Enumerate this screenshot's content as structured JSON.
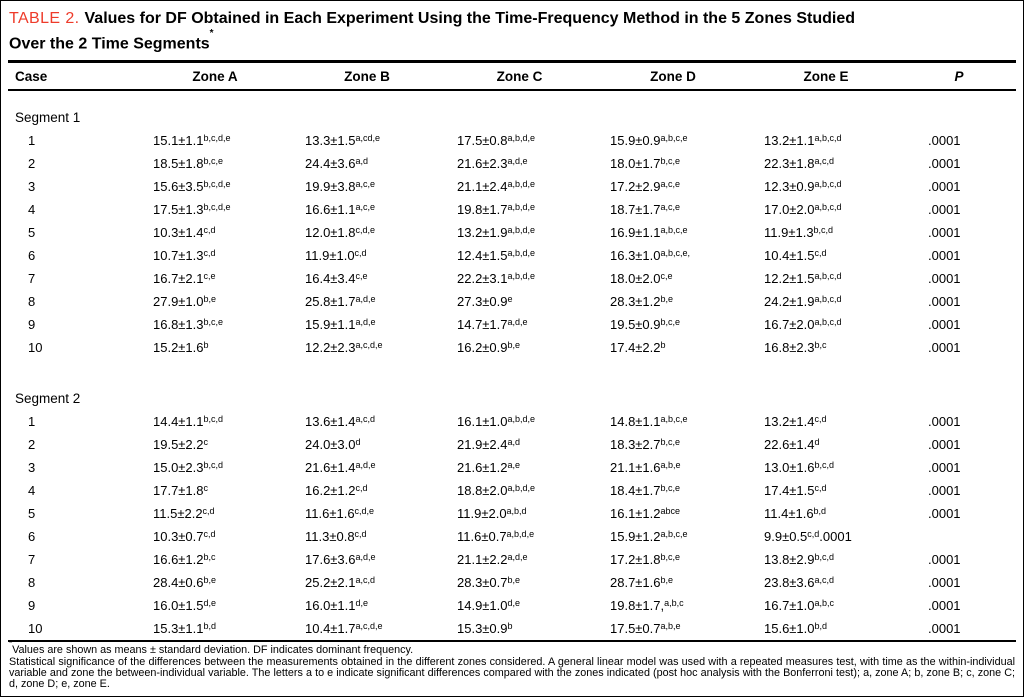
{
  "title": {
    "label": "TABLE 2.",
    "line1": "Values for DF Obtained in Each Experiment Using the Time-Frequency Method in the 5 Zones Studied",
    "line2": "Over the 2 Time Segments",
    "mark": "*"
  },
  "accent_color": "#ee3b2a",
  "columns": [
    "Case",
    "Zone A",
    "Zone B",
    "Zone C",
    "Zone D",
    "Zone E",
    "P"
  ],
  "sections": [
    {
      "name": "Segment 1",
      "rows": [
        {
          "case": "1",
          "cells": [
            {
              "v": "15.1±1.1",
              "s": "b,c,d,e"
            },
            {
              "v": "13.3±1.5",
              "s": "a,cd,e"
            },
            {
              "v": "17.5±0.8",
              "s": "a,b,d,e"
            },
            {
              "v": "15.9±0.9",
              "s": "a,b,c,e"
            },
            {
              "v": "13.2±1.1",
              "s": "a,b,c,d"
            }
          ],
          "p": ".0001"
        },
        {
          "case": "2",
          "cells": [
            {
              "v": "18.5±1.8",
              "s": "b,c,e"
            },
            {
              "v": "24.4±3.6",
              "s": "a,d"
            },
            {
              "v": "21.6±2.3",
              "s": "a,d,e"
            },
            {
              "v": "18.0±1.7",
              "s": "b,c,e"
            },
            {
              "v": "22.3±1.8",
              "s": "a,c,d"
            }
          ],
          "p": ".0001"
        },
        {
          "case": "3",
          "cells": [
            {
              "v": "15.6±3.5",
              "s": "b,c,d,e"
            },
            {
              "v": "19.9±3.8",
              "s": "a,c,e"
            },
            {
              "v": "21.1±2.4",
              "s": "a,b,d,e"
            },
            {
              "v": "17.2±2.9",
              "s": "a,c,e"
            },
            {
              "v": "12.3±0.9",
              "s": "a,b,c,d"
            }
          ],
          "p": ".0001"
        },
        {
          "case": "4",
          "cells": [
            {
              "v": "17.5±1.3",
              "s": "b,c,d,e"
            },
            {
              "v": "16.6±1.1",
              "s": "a,c,e"
            },
            {
              "v": "19.8±1.7",
              "s": "a,b,d,e"
            },
            {
              "v": "18.7±1.7",
              "s": "a,c,e"
            },
            {
              "v": "17.0±2.0",
              "s": "a,b,c,d"
            }
          ],
          "p": ".0001"
        },
        {
          "case": "5",
          "cells": [
            {
              "v": "10.3±1.4",
              "s": "c,d"
            },
            {
              "v": "12.0±1.8",
              "s": "c,d,e"
            },
            {
              "v": "13.2±1.9",
              "s": "a,b,d,e"
            },
            {
              "v": "16.9±1.1",
              "s": "a,b,c,e"
            },
            {
              "v": "11.9±1.3",
              "s": "b,c,d"
            }
          ],
          "p": ".0001"
        },
        {
          "case": "6",
          "cells": [
            {
              "v": "10.7±1.3",
              "s": "c,d"
            },
            {
              "v": "11.9±1.0",
              "s": "c,d"
            },
            {
              "v": "12.4±1.5",
              "s": "a,b,d,e"
            },
            {
              "v": "16.3±1.0",
              "s": "a,b,c,e,"
            },
            {
              "v": "10.4±1.5",
              "s": "c,d"
            }
          ],
          "p": ".0001"
        },
        {
          "case": "7",
          "cells": [
            {
              "v": "16.7±2.1",
              "s": "c,e"
            },
            {
              "v": "16.4±3.4",
              "s": "c,e"
            },
            {
              "v": "22.2±3.1",
              "s": "a,b,d,e"
            },
            {
              "v": "18.0±2.0",
              "s": "c,e"
            },
            {
              "v": "12.2±1.5",
              "s": "a,b,c,d"
            }
          ],
          "p": ".0001"
        },
        {
          "case": "8",
          "cells": [
            {
              "v": "27.9±1.0",
              "s": "b,e"
            },
            {
              "v": "25.8±1.7",
              "s": "a,d,e"
            },
            {
              "v": "27.3±0.9",
              "s": "e"
            },
            {
              "v": "28.3±1.2",
              "s": "b,e"
            },
            {
              "v": "24.2±1.9",
              "s": "a,b,c,d"
            }
          ],
          "p": ".0001"
        },
        {
          "case": "9",
          "cells": [
            {
              "v": "16.8±1.3",
              "s": "b,c,e"
            },
            {
              "v": "15.9±1.1",
              "s": "a,d,e"
            },
            {
              "v": "14.7±1.7",
              "s": "a,d,e"
            },
            {
              "v": "19.5±0.9",
              "s": "b,c,e"
            },
            {
              "v": "16.7±2.0",
              "s": "a,b,c,d"
            }
          ],
          "p": ".0001"
        },
        {
          "case": "10",
          "cells": [
            {
              "v": "15.2±1.6",
              "s": "b"
            },
            {
              "v": "12.2±2.3",
              "s": "a,c,d,e"
            },
            {
              "v": "16.2±0.9",
              "s": "b,e"
            },
            {
              "v": "17.4±2.2",
              "s": "b"
            },
            {
              "v": "16.8±2.3",
              "s": "b,c"
            }
          ],
          "p": ".0001"
        }
      ]
    },
    {
      "name": "Segment 2",
      "rows": [
        {
          "case": "1",
          "cells": [
            {
              "v": "14.4±1.1",
              "s": "b,c,d"
            },
            {
              "v": "13.6±1.4",
              "s": "a,c,d"
            },
            {
              "v": "16.1±1.0",
              "s": "a,b,d,e"
            },
            {
              "v": "14.8±1.1",
              "s": "a,b,c,e"
            },
            {
              "v": "13.2±1.4",
              "s": "c,d"
            }
          ],
          "p": ".0001"
        },
        {
          "case": "2",
          "cells": [
            {
              "v": "19.5±2.2",
              "s": "c"
            },
            {
              "v": "24.0±3.0",
              "s": "d"
            },
            {
              "v": "21.9±2.4",
              "s": "a,d"
            },
            {
              "v": "18.3±2.7",
              "s": "b,c,e"
            },
            {
              "v": "22.6±1.4",
              "s": "d"
            }
          ],
          "p": ".0001"
        },
        {
          "case": "3",
          "cells": [
            {
              "v": "15.0±2.3",
              "s": "b,c,d"
            },
            {
              "v": "21.6±1.4",
              "s": "a,d,e"
            },
            {
              "v": "21.6±1.2",
              "s": "a,e"
            },
            {
              "v": "21.1±1.6",
              "s": "a,b,e"
            },
            {
              "v": "13.0±1.6",
              "s": "b,c,d"
            }
          ],
          "p": ".0001"
        },
        {
          "case": "4",
          "cells": [
            {
              "v": "17.7±1.8",
              "s": "c"
            },
            {
              "v": "16.2±1.2",
              "s": "c,d"
            },
            {
              "v": "18.8±2.0",
              "s": "a,b,d,e"
            },
            {
              "v": "18.4±1.7",
              "s": "b,c,e"
            },
            {
              "v": "17.4±1.5",
              "s": "c,d"
            }
          ],
          "p": ".0001"
        },
        {
          "case": "5",
          "cells": [
            {
              "v": "11.5±2.2",
              "s": "c,d"
            },
            {
              "v": "11.6±1.6",
              "s": "c,d,e"
            },
            {
              "v": "11.9±2.0",
              "s": "a,b,d"
            },
            {
              "v": "16.1±1.2",
              "s": "abce"
            },
            {
              "v": "11.4±1.6",
              "s": "b,d"
            }
          ],
          "p": ".0001"
        },
        {
          "case": "6",
          "cells": [
            {
              "v": "10.3±0.7",
              "s": "c,d"
            },
            {
              "v": "11.3±0.8",
              "s": "c,d"
            },
            {
              "v": "11.6±0.7",
              "s": "a,b,d,e"
            },
            {
              "v": "15.9±1.2",
              "s": "a,b,c,e"
            },
            {
              "v": "9.9±0.5",
              "s": "c,d",
              "t": ".0001"
            }
          ],
          "p": ""
        },
        {
          "case": "7",
          "cells": [
            {
              "v": "16.6±1.2",
              "s": "b,c"
            },
            {
              "v": "17.6±3.6",
              "s": "a,d,e"
            },
            {
              "v": "21.1±2.2",
              "s": "a,d,e"
            },
            {
              "v": "17.2±1.8",
              "s": "b,c,e"
            },
            {
              "v": "13.8±2.9",
              "s": "b,c,d"
            }
          ],
          "p": ".0001"
        },
        {
          "case": "8",
          "cells": [
            {
              "v": "28.4±0.6",
              "s": "b,e"
            },
            {
              "v": "25.2±2.1",
              "s": "a,c,d"
            },
            {
              "v": "28.3±0.7",
              "s": "b,e"
            },
            {
              "v": "28.7±1.6",
              "s": "b,e"
            },
            {
              "v": "23.8±3.6",
              "s": "a,c,d"
            }
          ],
          "p": ".0001"
        },
        {
          "case": "9",
          "cells": [
            {
              "v": "16.0±1.5",
              "s": "d,e"
            },
            {
              "v": "16.0±1.1",
              "s": "d,e"
            },
            {
              "v": "14.9±1.0",
              "s": "d,e"
            },
            {
              "v": "19.8±1.7,",
              "s": "a,b,c"
            },
            {
              "v": "16.7±1.0",
              "s": "a,b,c"
            }
          ],
          "p": ".0001"
        },
        {
          "case": "10",
          "cells": [
            {
              "v": "15.3±1.1",
              "s": "b,d"
            },
            {
              "v": "10.4±1.7",
              "s": "a,c,d,e"
            },
            {
              "v": "15.3±0.9",
              "s": "b"
            },
            {
              "v": "17.5±0.7",
              "s": "a,b,e"
            },
            {
              "v": "15.6±1.0",
              "s": "b,d"
            }
          ],
          "p": ".0001"
        }
      ]
    }
  ],
  "footnotes": {
    "mark": "*",
    "note1": "Values are shown as means ± standard deviation. DF indicates dominant frequency.",
    "note2": "Statistical significance of the differences between the measurements obtained in the different zones considered. A general linear model was used with a repeated measures test, with time as the within-individual variable and zone the between-individual variable. The letters a to e indicate significant differences compared with the zones indicated (post hoc analysis with the Bonferroni test); a, zone A; b, zone B; c, zone C; d, zone D; e, zone E."
  }
}
